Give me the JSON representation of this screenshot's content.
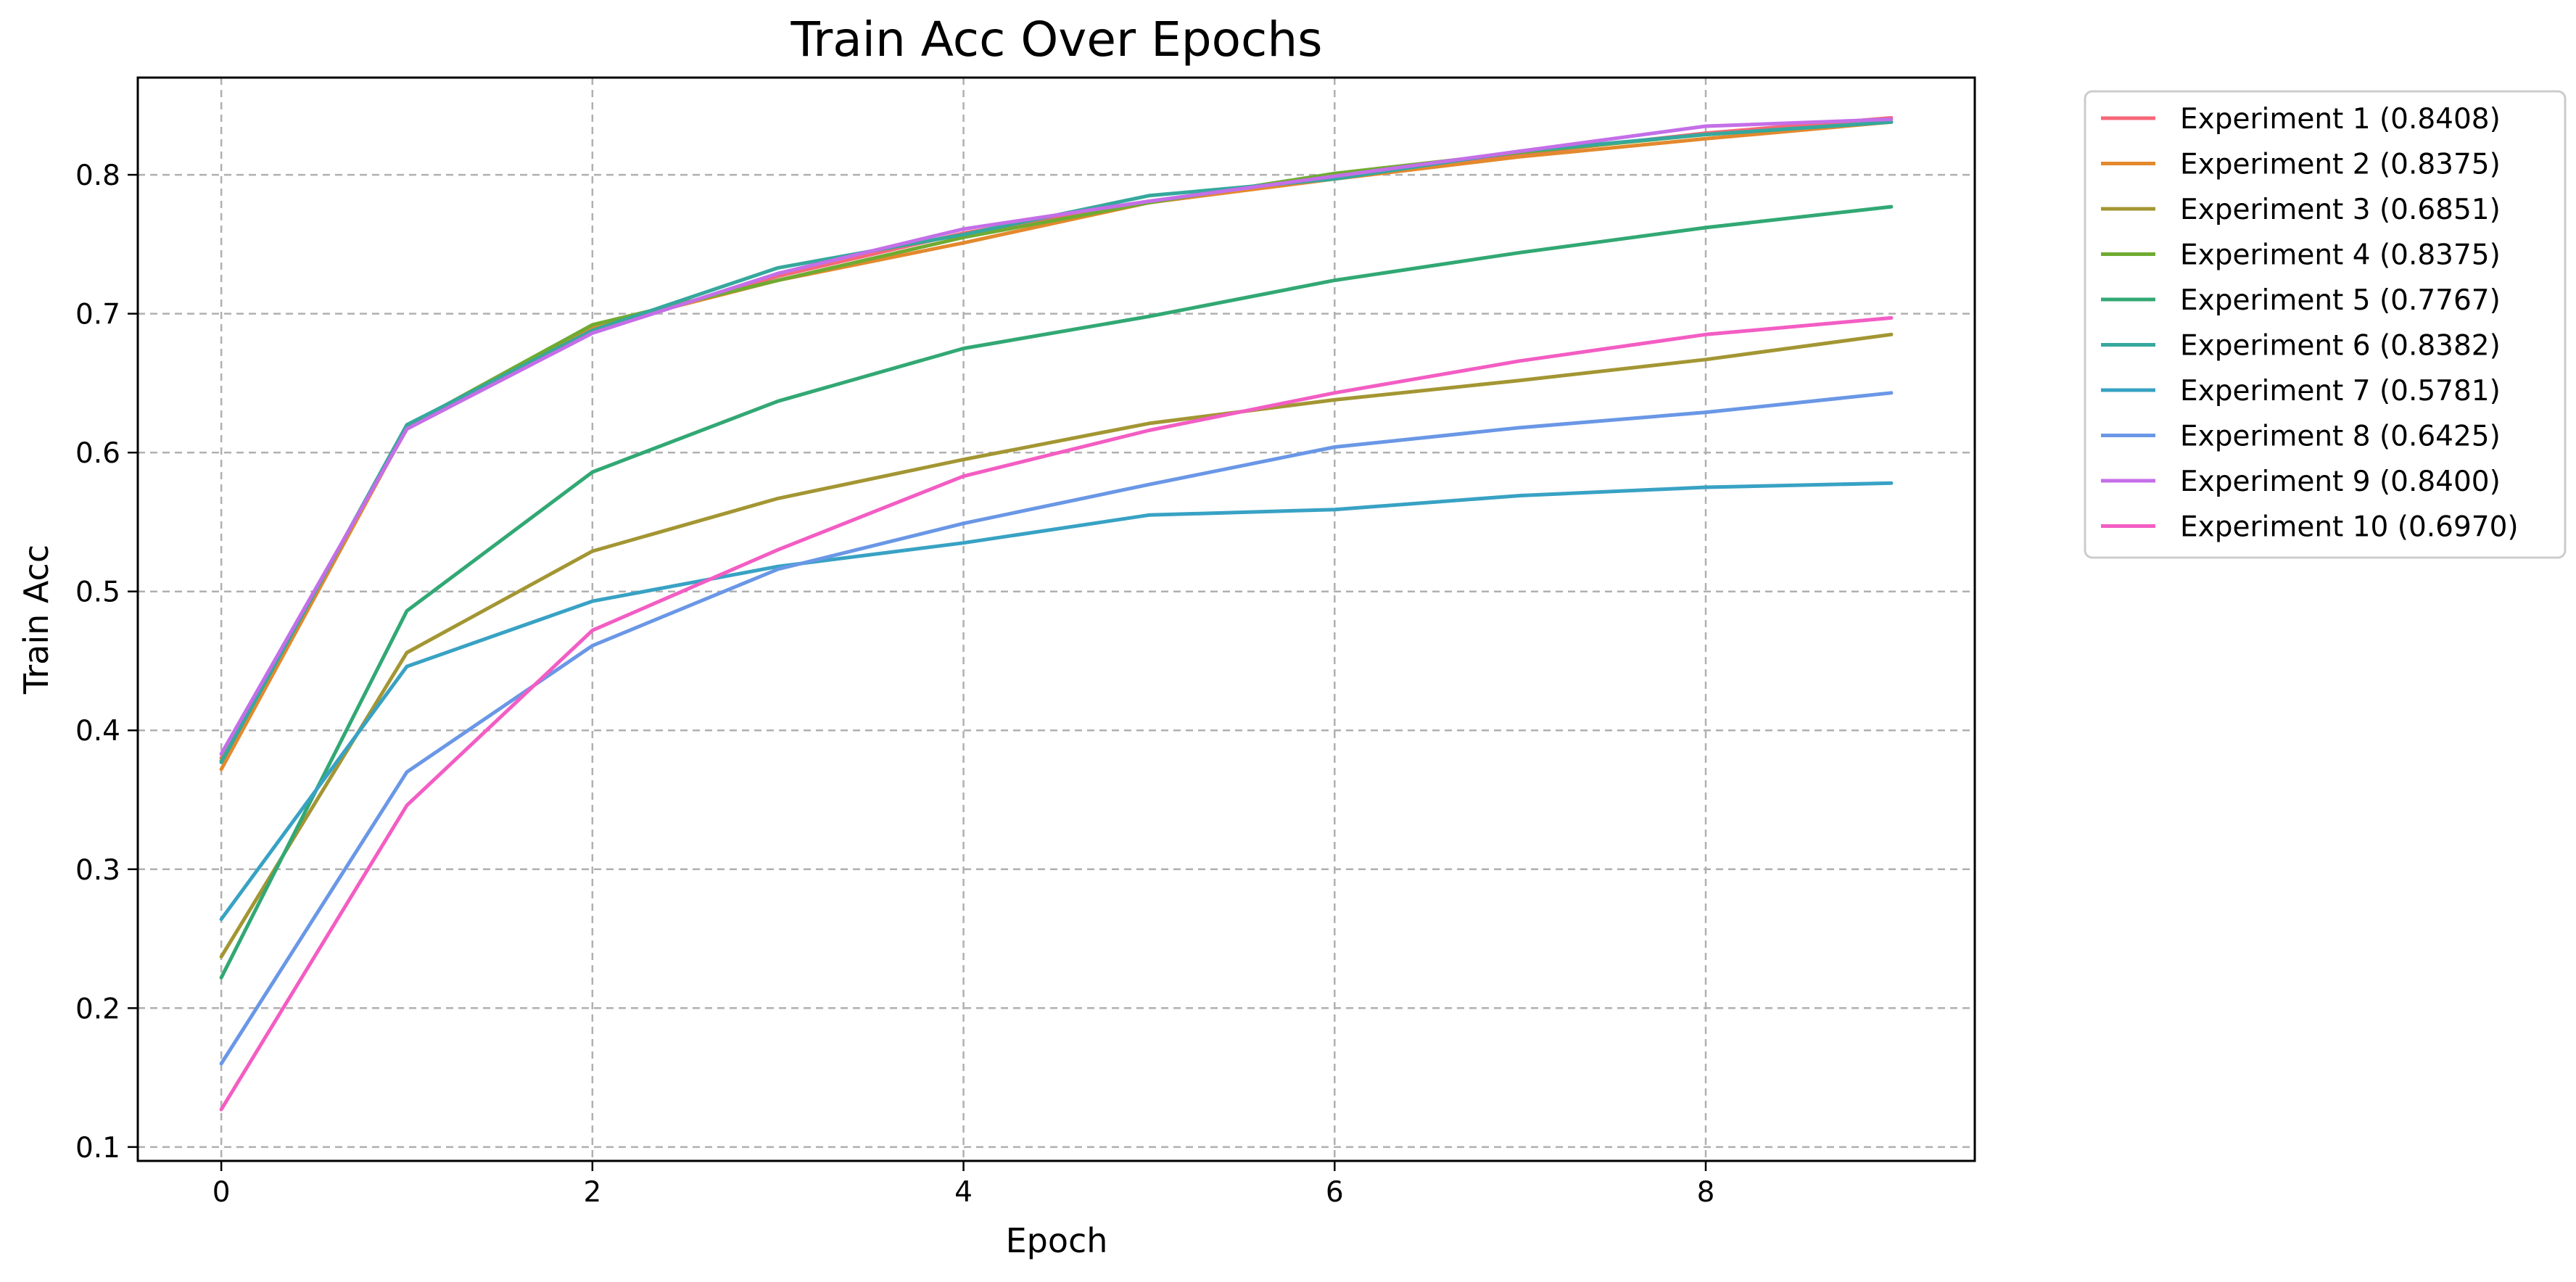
{
  "chart_data": {
    "type": "line",
    "title": "Train Acc Over Epochs",
    "xlabel": "Epoch",
    "ylabel": "Train Acc",
    "xlim": [
      -0.45,
      9.45
    ],
    "ylim": [
      0.09,
      0.87
    ],
    "x_ticks": [
      0,
      2,
      4,
      6,
      8
    ],
    "y_ticks": [
      0.1,
      0.2,
      0.3,
      0.4,
      0.5,
      0.6,
      0.7,
      0.8
    ],
    "x_tick_labels": [
      "0",
      "2",
      "4",
      "6",
      "8"
    ],
    "y_tick_labels": [
      "0.1",
      "0.2",
      "0.3",
      "0.4",
      "0.5",
      "0.6",
      "0.7",
      "0.8"
    ],
    "grid": true,
    "legend_position": "outside-top-right",
    "x": [
      0,
      1,
      2,
      3,
      4,
      5,
      6,
      7,
      8,
      9
    ],
    "series": [
      {
        "name": "Experiment 1 (0.8408)",
        "color": "#f66778",
        "values": [
          0.38,
          0.617,
          0.688,
          0.727,
          0.758,
          0.78,
          0.798,
          0.815,
          0.83,
          0.841
        ]
      },
      {
        "name": "Experiment 2 (0.8375)",
        "color": "#e3892d",
        "values": [
          0.372,
          0.618,
          0.69,
          0.724,
          0.751,
          0.78,
          0.797,
          0.813,
          0.826,
          0.838
        ]
      },
      {
        "name": "Experiment 3 (0.6851)",
        "color": "#a39633",
        "values": [
          0.237,
          0.456,
          0.529,
          0.567,
          0.595,
          0.621,
          0.638,
          0.652,
          0.667,
          0.685
        ]
      },
      {
        "name": "Experiment 4 (0.8375)",
        "color": "#6fab32",
        "values": [
          0.378,
          0.619,
          0.692,
          0.724,
          0.755,
          0.78,
          0.801,
          0.816,
          0.829,
          0.838
        ]
      },
      {
        "name": "Experiment 5 (0.7767)",
        "color": "#32a874",
        "values": [
          0.222,
          0.486,
          0.586,
          0.637,
          0.675,
          0.698,
          0.724,
          0.744,
          0.762,
          0.777
        ]
      },
      {
        "name": "Experiment 6 (0.8382)",
        "color": "#36a89d",
        "values": [
          0.377,
          0.62,
          0.688,
          0.733,
          0.757,
          0.785,
          0.797,
          0.817,
          0.829,
          0.838
        ]
      },
      {
        "name": "Experiment 7 (0.5781)",
        "color": "#38a2c4",
        "values": [
          0.264,
          0.446,
          0.493,
          0.518,
          0.535,
          0.555,
          0.559,
          0.569,
          0.575,
          0.578
        ]
      },
      {
        "name": "Experiment 8 (0.6425)",
        "color": "#6a97e6",
        "values": [
          0.16,
          0.37,
          0.461,
          0.516,
          0.549,
          0.577,
          0.604,
          0.618,
          0.629,
          0.643
        ]
      },
      {
        "name": "Experiment 9 (0.8400)",
        "color": "#c46ee8",
        "values": [
          0.383,
          0.617,
          0.686,
          0.729,
          0.761,
          0.781,
          0.799,
          0.817,
          0.835,
          0.84
        ]
      },
      {
        "name": "Experiment 10 (0.6970)",
        "color": "#f35dc3",
        "values": [
          0.127,
          0.346,
          0.472,
          0.53,
          0.583,
          0.616,
          0.643,
          0.666,
          0.685,
          0.697
        ]
      }
    ]
  }
}
